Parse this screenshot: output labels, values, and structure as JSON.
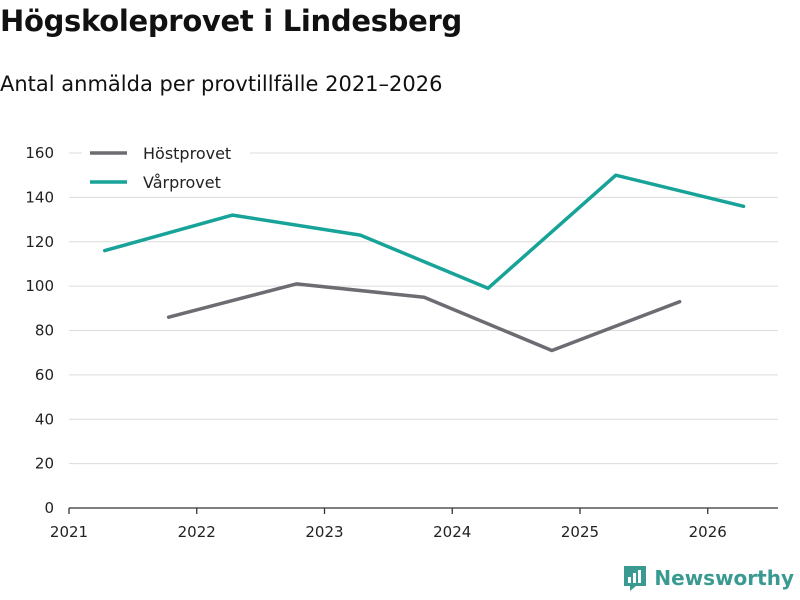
{
  "chart_data": {
    "type": "line",
    "title": "Högskoleprovet i Lindesberg",
    "subtitle": "Antal anmälda per provtillfälle 2021–2026",
    "xlabel": "",
    "ylabel": "",
    "ylim": [
      0,
      160
    ],
    "xlim": [
      2021,
      2026.55
    ],
    "yticks": [
      "0",
      "20",
      "40",
      "60",
      "80",
      "100",
      "120",
      "140",
      "160"
    ],
    "xticks": [
      "2021",
      "2022",
      "2023",
      "2024",
      "2025",
      "2026"
    ],
    "legend_position": "top-left",
    "series": [
      {
        "name": "Höstprovet",
        "color": "#6d6c72",
        "points": [
          [
            2021.78,
            86
          ],
          [
            2022.78,
            101
          ],
          [
            2023.78,
            95
          ],
          [
            2024.78,
            71
          ],
          [
            2025.78,
            93
          ]
        ]
      },
      {
        "name": "Vårprovet",
        "color": "#17a398",
        "points": [
          [
            2021.28,
            116
          ],
          [
            2022.28,
            132
          ],
          [
            2023.28,
            123
          ],
          [
            2024.28,
            99
          ],
          [
            2025.28,
            150
          ],
          [
            2026.28,
            136
          ]
        ]
      }
    ]
  },
  "brand": {
    "name": "Newsworthy",
    "color": "#3a9a92"
  }
}
